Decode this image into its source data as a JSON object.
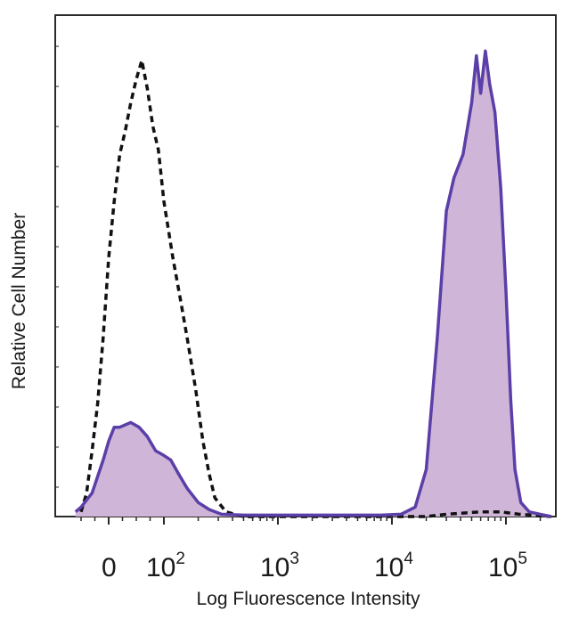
{
  "chart_data": {
    "type": "area",
    "title": "",
    "xlabel": "Log Fluorescence Intensity",
    "ylabel": "Relative Cell Number",
    "x_scale": "biexponential",
    "xlim": [
      -60,
      250000
    ],
    "ylim": [
      0,
      1
    ],
    "grid": false,
    "legend": "none",
    "x_ticks": [
      {
        "value": 0,
        "base": "0",
        "exp": ""
      },
      {
        "value": 100,
        "base": "10",
        "exp": "2"
      },
      {
        "value": 1000,
        "base": "10",
        "exp": "3"
      },
      {
        "value": 10000,
        "base": "10",
        "exp": "4"
      },
      {
        "value": 100000,
        "base": "10",
        "exp": "5"
      }
    ],
    "series": [
      {
        "style": "dashed",
        "color": "#111111",
        "fill": "none",
        "points": [
          [
            -50,
            0.01
          ],
          [
            -40,
            0.05
          ],
          [
            -30,
            0.14
          ],
          [
            -20,
            0.24
          ],
          [
            -10,
            0.38
          ],
          [
            0,
            0.55
          ],
          [
            10,
            0.67
          ],
          [
            20,
            0.77
          ],
          [
            30,
            0.82
          ],
          [
            40,
            0.88
          ],
          [
            50,
            0.93
          ],
          [
            60,
            0.97
          ],
          [
            70,
            0.91
          ],
          [
            80,
            0.83
          ],
          [
            90,
            0.78
          ],
          [
            100,
            0.67
          ],
          [
            120,
            0.55
          ],
          [
            140,
            0.46
          ],
          [
            160,
            0.38
          ],
          [
            190,
            0.27
          ],
          [
            220,
            0.16
          ],
          [
            250,
            0.09
          ],
          [
            280,
            0.04
          ],
          [
            350,
            0.01
          ],
          [
            500,
            0.0
          ],
          [
            1000,
            0.0
          ],
          [
            5000,
            0.0
          ],
          [
            12000,
            0.0
          ],
          [
            20000,
            0.0
          ],
          [
            30000,
            0.005
          ],
          [
            60000,
            0.01
          ],
          [
            90000,
            0.01
          ],
          [
            130000,
            0.005
          ],
          [
            250000,
            0.0
          ]
        ]
      },
      {
        "style": "solid",
        "color": "#5b3fa8",
        "fill": "#cfb6d8",
        "points": [
          [
            -60,
            0.01
          ],
          [
            -50,
            0.02
          ],
          [
            -30,
            0.05
          ],
          [
            -10,
            0.12
          ],
          [
            0,
            0.16
          ],
          [
            10,
            0.19
          ],
          [
            20,
            0.19
          ],
          [
            40,
            0.2
          ],
          [
            55,
            0.19
          ],
          [
            70,
            0.17
          ],
          [
            85,
            0.14
          ],
          [
            100,
            0.13
          ],
          [
            115,
            0.12
          ],
          [
            135,
            0.09
          ],
          [
            160,
            0.06
          ],
          [
            200,
            0.03
          ],
          [
            250,
            0.015
          ],
          [
            320,
            0.005
          ],
          [
            500,
            0.003
          ],
          [
            1000,
            0.003
          ],
          [
            3000,
            0.003
          ],
          [
            8000,
            0.003
          ],
          [
            12000,
            0.005
          ],
          [
            16000,
            0.02
          ],
          [
            20000,
            0.1
          ],
          [
            25000,
            0.38
          ],
          [
            30000,
            0.65
          ],
          [
            35000,
            0.72
          ],
          [
            42000,
            0.77
          ],
          [
            50000,
            0.88
          ],
          [
            55000,
            0.98
          ],
          [
            60000,
            0.9
          ],
          [
            66000,
            0.99
          ],
          [
            72000,
            0.92
          ],
          [
            80000,
            0.86
          ],
          [
            90000,
            0.7
          ],
          [
            100000,
            0.48
          ],
          [
            110000,
            0.25
          ],
          [
            120000,
            0.1
          ],
          [
            135000,
            0.03
          ],
          [
            160000,
            0.01
          ],
          [
            200000,
            0.005
          ],
          [
            250000,
            0.0
          ]
        ]
      }
    ]
  }
}
